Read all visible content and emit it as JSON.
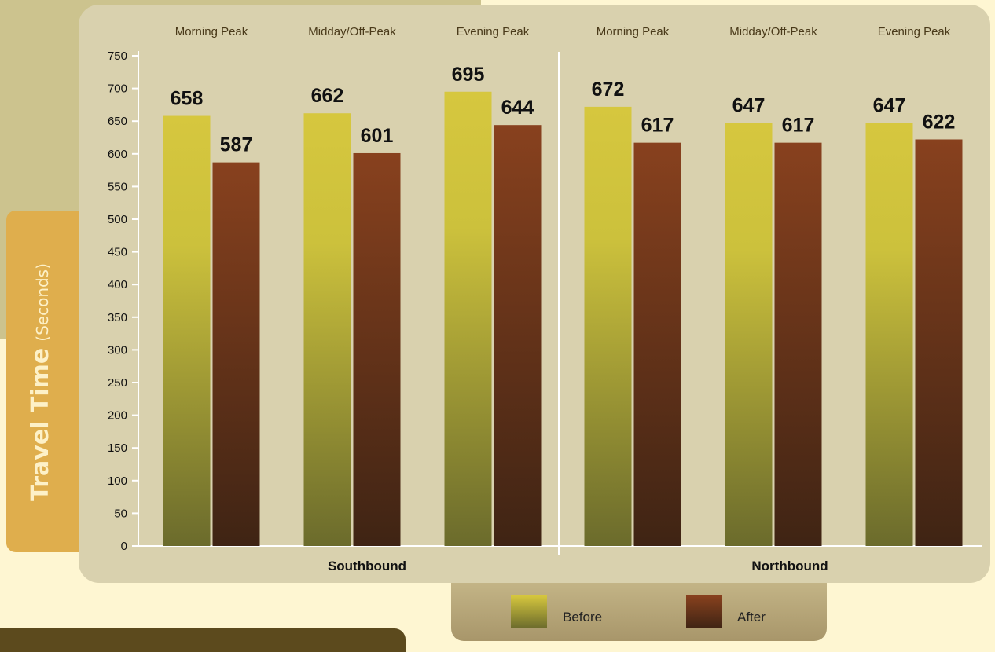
{
  "chart_data": {
    "type": "bar",
    "ylabel": "Travel Time",
    "ylabel_unit": "(Seconds)",
    "ylim": [
      0,
      750
    ],
    "yticks": [
      0,
      50,
      100,
      150,
      200,
      250,
      300,
      350,
      400,
      450,
      500,
      550,
      600,
      650,
      700,
      750
    ],
    "groups": [
      {
        "name": "Southbound",
        "categories": [
          "Morning Peak",
          "Midday/Off-Peak",
          "Evening Peak"
        ]
      },
      {
        "name": "Northbound",
        "categories": [
          "Morning Peak",
          "Midday/Off-Peak",
          "Evening Peak"
        ]
      }
    ],
    "categories": [
      "Morning Peak",
      "Midday/Off-Peak",
      "Evening Peak",
      "Morning Peak",
      "Midday/Off-Peak",
      "Evening Peak"
    ],
    "series": [
      {
        "name": "Before",
        "values": [
          658,
          662,
          695,
          672,
          647,
          647
        ],
        "value_labels": [
          "658",
          "662",
          "695",
          "672",
          "647",
          "647"
        ]
      },
      {
        "name": "After",
        "values": [
          587,
          601,
          644,
          617,
          617,
          622
        ],
        "value_labels": [
          "587",
          "601",
          "644",
          "617",
          "617",
          "622"
        ]
      }
    ],
    "grid": false,
    "legend_position": "bottom"
  },
  "colors": {
    "before_top": "#d6c73e",
    "before_bottom": "#6b6b2c",
    "after_top": "#88411e",
    "after_bottom": "#3f2414",
    "panel": "#d9d1ae",
    "background": "#fef6d2",
    "accent": "#dfae4d"
  }
}
